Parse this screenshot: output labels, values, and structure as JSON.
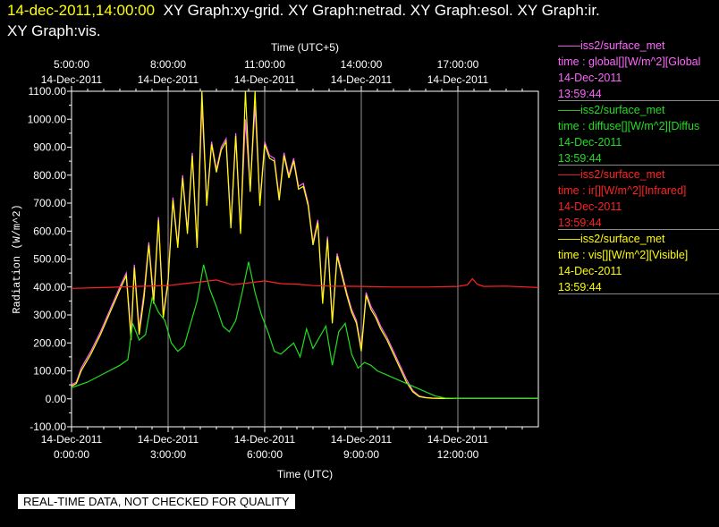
{
  "header": {
    "line1_time": "14-dec-2011,14:00:00",
    "line1_rest": "XY Graph:xy-grid.  XY Graph:netrad.  XY Graph:esol.  XY Graph:ir.",
    "line2": "XY Graph:vis."
  },
  "legend": [
    {
      "color": "#ff66ff",
      "lines": [
        "——iss2/surface_met",
        "time : global[][W/m^2][Global",
        "14-Dec-2011",
        "13:59:44"
      ]
    },
    {
      "color": "#22dd22",
      "lines": [
        "——iss2/surface_met",
        "time : diffuse[][W/m^2][Diffus",
        "14-Dec-2011",
        "13:59:44"
      ]
    },
    {
      "color": "#ff2222",
      "lines": [
        "——iss2/surface_met",
        "time : ir[][W/m^2][Infrared]",
        "14-Dec-2011",
        "13:59:44"
      ]
    },
    {
      "color": "#ffff00",
      "lines": [
        "——iss2/surface_met",
        "time : vis[][W/m^2][Visible]",
        "14-Dec-2011",
        "13:59:44"
      ]
    }
  ],
  "disclaimer": "REAL-TIME DATA, NOT CHECKED FOR QUALITY",
  "chart_data": {
    "type": "line",
    "title": "",
    "xlabel": "Time (UTC)",
    "x2label": "Time (UTC+5)",
    "ylabel": "Radiation (W/m^2)",
    "xlim": [
      0,
      14.5
    ],
    "ylim": [
      -100,
      1100
    ],
    "grid": true,
    "yticks": [
      -100,
      0,
      100,
      200,
      300,
      400,
      500,
      600,
      700,
      800,
      900,
      1000,
      1100
    ],
    "ytick_labels": [
      "-100.00",
      "0.00",
      "100.00",
      "200.00",
      "300.00",
      "400.00",
      "500.00",
      "600.00",
      "700.00",
      "800.00",
      "900.00",
      "1000.00",
      "1100.00"
    ],
    "xticks": [
      {
        "x": 0,
        "labels": [
          "14-Dec-2011",
          "0:00:00"
        ]
      },
      {
        "x": 3,
        "labels": [
          "14-Dec-2011",
          "3:00:00"
        ]
      },
      {
        "x": 6,
        "labels": [
          "14-Dec-2011",
          "6:00:00"
        ]
      },
      {
        "x": 9,
        "labels": [
          "14-Dec-2011",
          "9:00:00"
        ]
      },
      {
        "x": 12,
        "labels": [
          "14-Dec-2011",
          "12:00:00"
        ]
      }
    ],
    "xticks_top": [
      {
        "x": 0,
        "labels": [
          "5:00:00",
          "14-Dec-2011"
        ]
      },
      {
        "x": 3,
        "labels": [
          "8:00:00",
          "14-Dec-2011"
        ]
      },
      {
        "x": 6,
        "labels": [
          "11:00:00",
          "14-Dec-2011"
        ]
      },
      {
        "x": 9,
        "labels": [
          "14:00:00",
          "14-Dec-2011"
        ]
      },
      {
        "x": 12,
        "labels": [
          "17:00:00",
          "14-Dec-2011"
        ]
      }
    ],
    "series": [
      {
        "name": "global",
        "color": "#ff66ff",
        "x": [
          0.0,
          0.15,
          0.3,
          0.6,
          0.9,
          1.2,
          1.5,
          1.7,
          1.85,
          1.95,
          2.1,
          2.25,
          2.4,
          2.55,
          2.7,
          2.85,
          3.0,
          3.15,
          3.3,
          3.45,
          3.6,
          3.75,
          3.9,
          4.05,
          4.2,
          4.35,
          4.5,
          4.65,
          4.8,
          4.95,
          5.1,
          5.25,
          5.4,
          5.55,
          5.7,
          5.85,
          6.0,
          6.15,
          6.3,
          6.45,
          6.6,
          6.75,
          6.9,
          7.05,
          7.2,
          7.35,
          7.5,
          7.65,
          7.8,
          7.95,
          8.1,
          8.25,
          8.4,
          8.55,
          8.7,
          8.85,
          9.0,
          9.15,
          9.3,
          9.45,
          9.6,
          9.8,
          10.0,
          10.2,
          10.4,
          10.6,
          10.8,
          11.0,
          11.2,
          11.5,
          12.0,
          12.5,
          13.0,
          13.5,
          14.0,
          14.5
        ],
        "y": [
          50,
          60,
          110,
          170,
          240,
          320,
          400,
          450,
          230,
          480,
          250,
          380,
          560,
          360,
          650,
          300,
          430,
          720,
          550,
          800,
          600,
          880,
          550,
          1050,
          700,
          920,
          820,
          900,
          930,
          620,
          950,
          600,
          1000,
          750,
          1050,
          700,
          920,
          870,
          860,
          720,
          880,
          800,
          860,
          760,
          770,
          700,
          560,
          640,
          350,
          580,
          280,
          520,
          450,
          380,
          320,
          280,
          180,
          380,
          330,
          300,
          260,
          220,
          170,
          120,
          70,
          30,
          10,
          5,
          3,
          2,
          2,
          2,
          2,
          2,
          2,
          2
        ]
      },
      {
        "name": "visible",
        "color": "#ffff00",
        "x": [
          0.0,
          0.15,
          0.3,
          0.6,
          0.9,
          1.2,
          1.5,
          1.7,
          1.85,
          1.95,
          2.1,
          2.25,
          2.4,
          2.55,
          2.7,
          2.85,
          3.0,
          3.15,
          3.3,
          3.45,
          3.6,
          3.75,
          3.9,
          4.05,
          4.2,
          4.35,
          4.5,
          4.65,
          4.8,
          4.95,
          5.1,
          5.25,
          5.4,
          5.55,
          5.7,
          5.85,
          6.0,
          6.15,
          6.3,
          6.45,
          6.6,
          6.75,
          6.9,
          7.05,
          7.2,
          7.35,
          7.5,
          7.65,
          7.8,
          7.95,
          8.1,
          8.25,
          8.4,
          8.55,
          8.7,
          8.85,
          9.0,
          9.15,
          9.3,
          9.45,
          9.6,
          9.8,
          10.0,
          10.2,
          10.4,
          10.6,
          10.8,
          11.0,
          11.2,
          11.5,
          12.0,
          12.5,
          13.0,
          13.5,
          14.0,
          14.5
        ],
        "y": [
          45,
          55,
          100,
          160,
          230,
          310,
          390,
          440,
          210,
          470,
          230,
          360,
          550,
          340,
          640,
          290,
          420,
          710,
          540,
          790,
          590,
          870,
          540,
          1100,
          690,
          910,
          810,
          890,
          920,
          610,
          940,
          590,
          1100,
          740,
          1100,
          690,
          910,
          860,
          850,
          710,
          870,
          790,
          850,
          750,
          760,
          690,
          550,
          630,
          340,
          570,
          270,
          510,
          440,
          370,
          310,
          270,
          170,
          370,
          320,
          290,
          250,
          210,
          160,
          110,
          60,
          25,
          8,
          4,
          2,
          1,
          1,
          1,
          1,
          1,
          1,
          1
        ]
      },
      {
        "name": "diffuse",
        "color": "#22dd22",
        "x": [
          0.0,
          0.5,
          1.0,
          1.5,
          1.75,
          1.9,
          2.1,
          2.3,
          2.5,
          2.7,
          2.9,
          3.1,
          3.3,
          3.5,
          3.7,
          3.9,
          4.1,
          4.3,
          4.5,
          4.7,
          4.9,
          5.1,
          5.3,
          5.5,
          5.7,
          5.9,
          6.1,
          6.3,
          6.5,
          6.7,
          6.9,
          7.1,
          7.3,
          7.5,
          7.7,
          7.9,
          8.1,
          8.3,
          8.5,
          8.7,
          8.9,
          9.1,
          9.3,
          9.5,
          9.8,
          10.2,
          10.6,
          11.0,
          11.3,
          11.6,
          12.0,
          12.5,
          13.0,
          13.5,
          14.0,
          14.5
        ],
        "y": [
          40,
          60,
          90,
          120,
          140,
          270,
          210,
          230,
          360,
          310,
          280,
          200,
          170,
          190,
          270,
          350,
          480,
          390,
          330,
          260,
          240,
          280,
          380,
          490,
          380,
          300,
          240,
          170,
          160,
          180,
          200,
          150,
          250,
          180,
          220,
          260,
          120,
          240,
          270,
          160,
          110,
          130,
          120,
          100,
          85,
          65,
          45,
          25,
          10,
          3,
          1,
          1,
          1,
          1,
          1,
          1
        ]
      },
      {
        "name": "infrared",
        "color": "#ff2222",
        "x": [
          0.0,
          1.0,
          2.0,
          3.0,
          3.5,
          4.0,
          4.5,
          5.0,
          5.5,
          6.0,
          6.5,
          7.0,
          7.5,
          8.0,
          9.0,
          10.0,
          11.0,
          12.0,
          12.3,
          12.45,
          12.6,
          12.8,
          13.5,
          14.5
        ],
        "y": [
          395,
          398,
          402,
          405,
          412,
          418,
          425,
          408,
          415,
          422,
          412,
          410,
          405,
          403,
          402,
          400,
          400,
          402,
          408,
          430,
          410,
          402,
          403,
          398
        ]
      }
    ]
  }
}
